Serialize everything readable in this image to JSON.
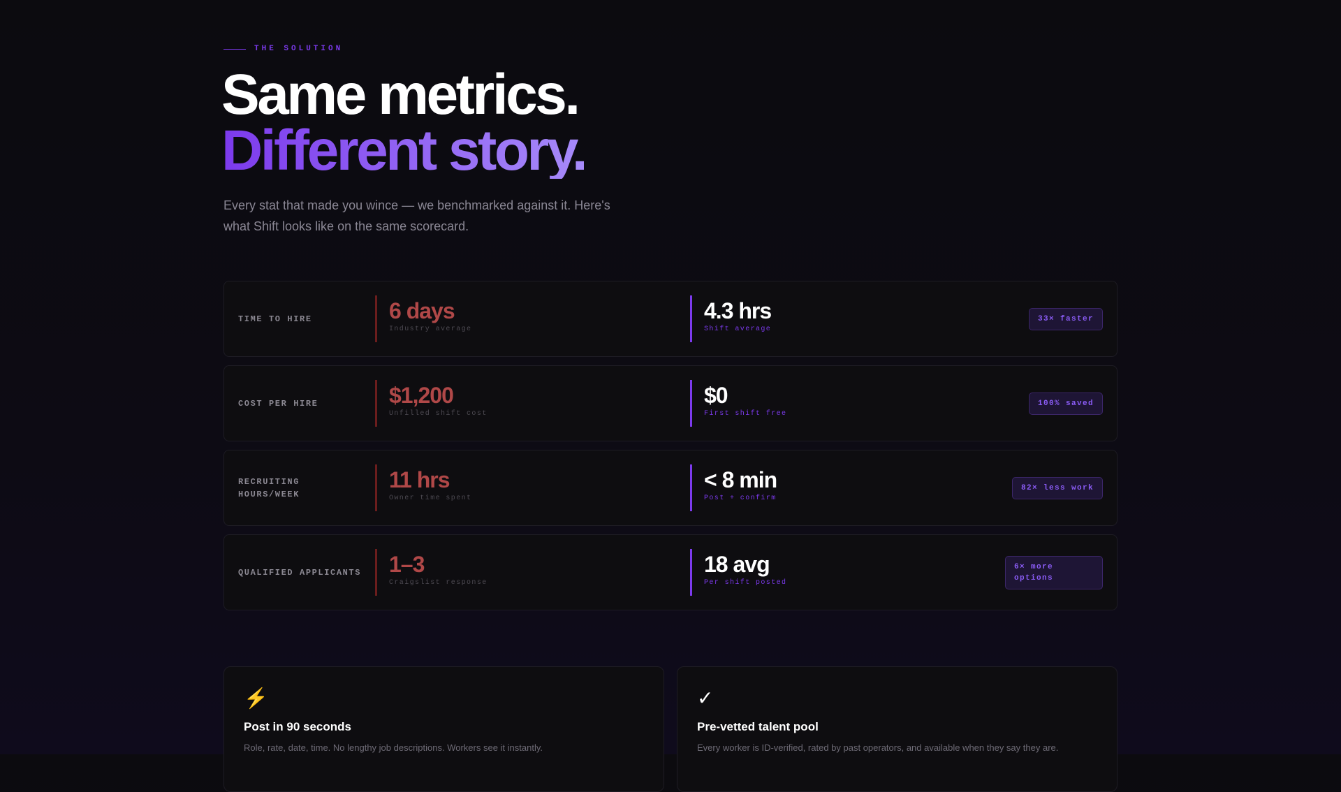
{
  "eyebrow": "THE SOLUTION",
  "headline": {
    "line1": "Same metrics.",
    "line2": "Different story."
  },
  "subtitle": "Every stat that made you wince — we benchmarked against it. Here's what Shift looks like on the same scorecard.",
  "rows": [
    {
      "label": "TIME TO HIRE",
      "old_value": "6 days",
      "old_caption": "Industry average",
      "new_value": "4.3 hrs",
      "new_caption": "Shift average",
      "badge": "33× faster"
    },
    {
      "label": "COST PER HIRE",
      "old_value": "$1,200",
      "old_caption": "Unfilled shift cost",
      "new_value": "$0",
      "new_caption": "First shift free",
      "badge": "100% saved"
    },
    {
      "label": "RECRUITING HOURS/WEEK",
      "old_value": "11 hrs",
      "old_caption": "Owner time spent",
      "new_value": "< 8 min",
      "new_caption": "Post + confirm",
      "badge": "82× less work"
    },
    {
      "label": "QUALIFIED APPLICANTS",
      "old_value": "1–3",
      "old_caption": "Craigslist response",
      "new_value": "18 avg",
      "new_caption": "Per shift posted",
      "badge": "6× more options"
    }
  ],
  "cards": [
    {
      "icon": "lightning-icon",
      "glyph": "⚡",
      "title": "Post in 90 seconds",
      "desc": "Role, rate, date, time. No lengthy job descriptions. Workers see it instantly."
    },
    {
      "icon": "check-icon",
      "glyph": "✓",
      "title": "Pre-vetted talent pool",
      "desc": "Every worker is ID-verified, rated by past operators, and available when they say they are."
    }
  ],
  "colors": {
    "accent": "#7c3aed",
    "negative": "#b04848",
    "background": "#0c0b10"
  }
}
